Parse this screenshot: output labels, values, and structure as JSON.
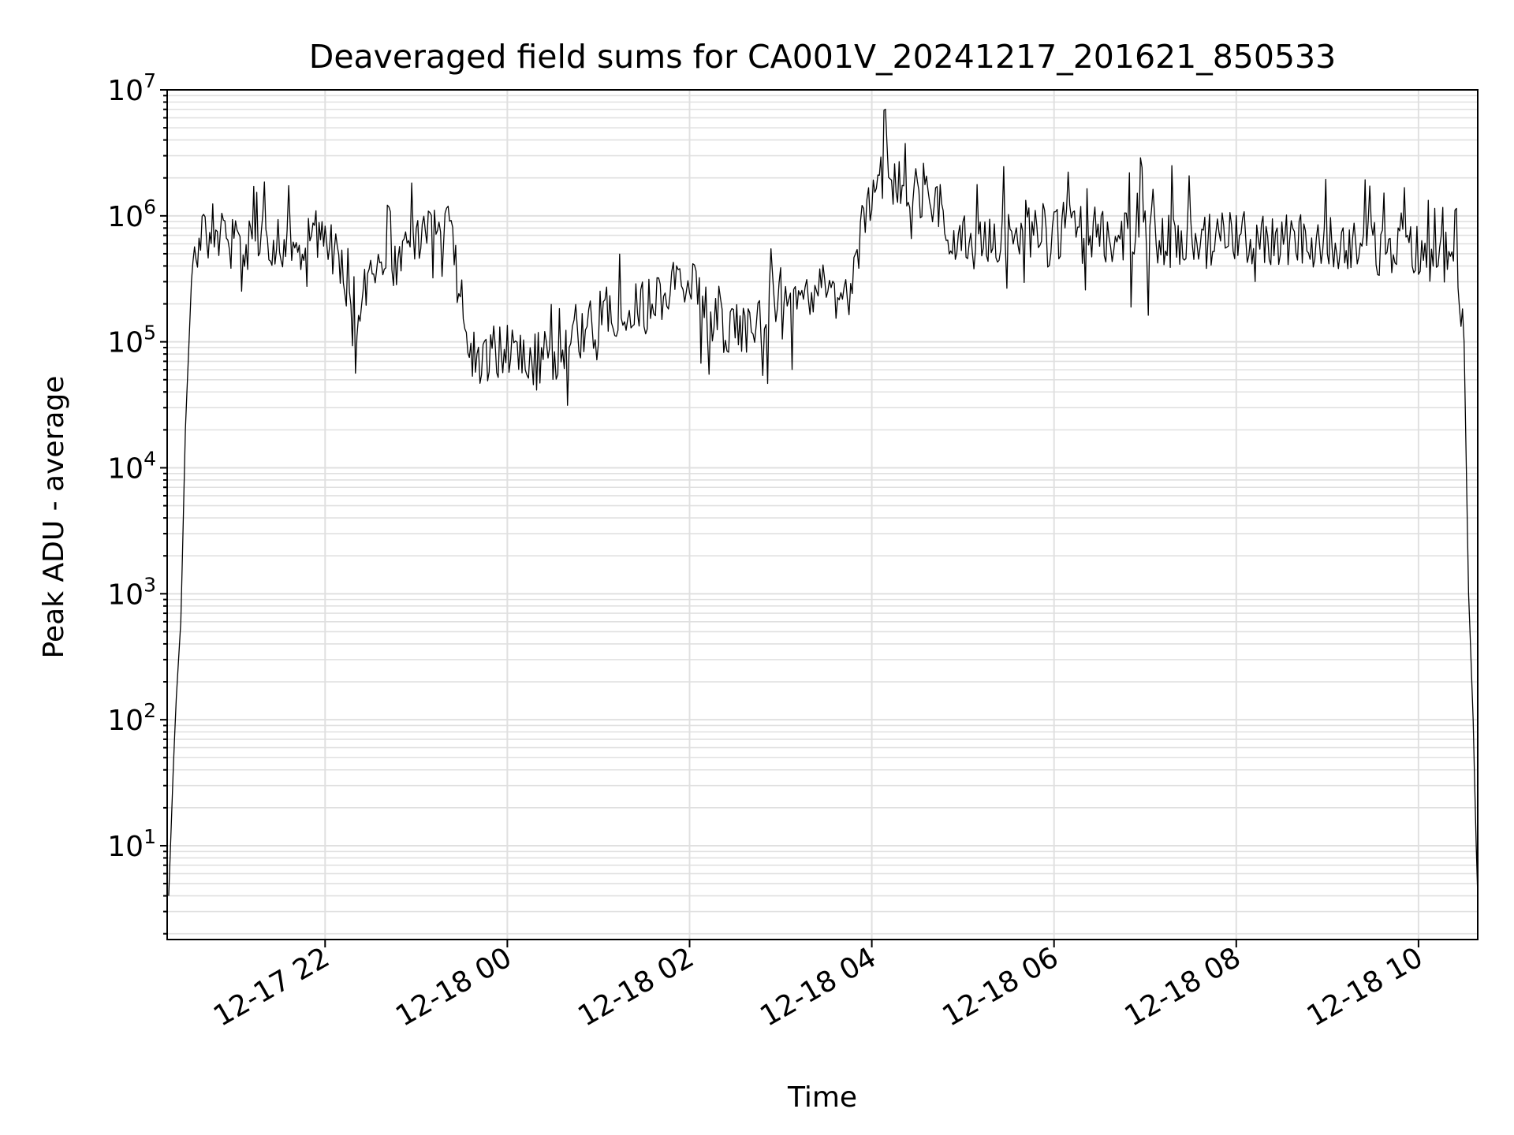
{
  "chart_data": {
    "type": "line",
    "title": "Deaveraged field sums for CA001V_20241217_201621_850533",
    "xlabel": "Time",
    "ylabel": "Peak ADU - average",
    "yscale": "log",
    "ylim": [
      1.8,
      10000000
    ],
    "xlim": [
      "12-17 20:16",
      "12-18 10:39"
    ],
    "grid": "major and minor, light gray",
    "line_color": "#000000",
    "x_ticks": [
      "12-17 22",
      "12-18 00",
      "12-18 02",
      "12-18 04",
      "12-18 06",
      "12-18 08",
      "12-18 10"
    ],
    "y_ticks": [
      {
        "base": "10",
        "exp": "1"
      },
      {
        "base": "10",
        "exp": "2"
      },
      {
        "base": "10",
        "exp": "3"
      },
      {
        "base": "10",
        "exp": "4"
      },
      {
        "base": "10",
        "exp": "5"
      },
      {
        "base": "10",
        "exp": "6"
      },
      {
        "base": "10",
        "exp": "7"
      }
    ],
    "series": [
      {
        "x": [
          "12-17 20:17",
          "12-17 20:20",
          "12-17 20:22",
          "12-17 20:25",
          "12-17 20:28",
          "12-17 20:32",
          "12-17 20:40",
          "12-17 20:50",
          "12-17 21:00",
          "12-17 21:10",
          "12-17 21:20",
          "12-17 21:30",
          "12-17 21:40",
          "12-17 21:50",
          "12-17 22:00",
          "12-17 22:10",
          "12-17 22:20",
          "12-17 22:30",
          "12-17 22:40",
          "12-17 22:50",
          "12-17 23:00",
          "12-17 23:10",
          "12-17 23:20",
          "12-17 23:30",
          "12-17 23:40",
          "12-17 23:50",
          "12-18 00:00",
          "12-18 00:15",
          "12-18 00:30",
          "12-18 00:45",
          "12-18 01:00",
          "12-18 01:15",
          "12-18 01:30",
          "12-18 01:45",
          "12-18 02:00",
          "12-18 02:15",
          "12-18 02:30",
          "12-18 02:45",
          "12-18 03:00",
          "12-18 03:15",
          "12-18 03:30",
          "12-18 03:45",
          "12-18 04:00",
          "12-18 04:10",
          "12-18 04:20",
          "12-18 04:30",
          "12-18 04:40",
          "12-18 04:50",
          "12-18 05:00",
          "12-18 05:30",
          "12-18 06:00",
          "12-18 06:30",
          "12-18 07:00",
          "12-18 07:30",
          "12-18 08:00",
          "12-18 08:30",
          "12-18 09:00",
          "12-18 09:30",
          "12-18 10:00",
          "12-18 10:15",
          "12-18 10:25",
          "12-18 10:30",
          "12-18 10:33",
          "12-18 10:36",
          "12-18 10:38",
          "12-18 10:39"
        ],
        "y": [
          4,
          40,
          150,
          600,
          20000,
          300000,
          700000,
          900000,
          800000,
          500000,
          700000,
          600000,
          500000,
          800000,
          700000,
          400000,
          80000,
          300000,
          500000,
          400000,
          600000,
          900000,
          1000000,
          200000,
          60000,
          80000,
          90000,
          70000,
          80000,
          100000,
          150000,
          200000,
          180000,
          250000,
          300000,
          150000,
          120000,
          150000,
          250000,
          200000,
          300000,
          200000,
          1500000,
          2000000,
          1800000,
          1600000,
          1200000,
          800000,
          600000,
          700000,
          800000,
          700000,
          700000,
          600000,
          700000,
          650000,
          600000,
          550000,
          500000,
          500000,
          400000,
          100000,
          1000,
          100,
          10,
          4
        ]
      }
    ]
  }
}
